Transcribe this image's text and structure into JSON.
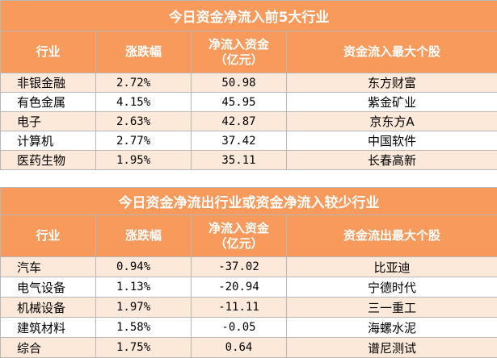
{
  "inflow": {
    "title": "今日资金净流入前5大行业",
    "headers": {
      "industry": "行业",
      "change": "涨跌幅",
      "flow_line1": "净流入资金",
      "flow_line2": "（亿元）",
      "stock": "资金流入最大个股"
    },
    "rows": [
      {
        "industry": "非银金融",
        "change": "2.72%",
        "flow": "50.98",
        "stock": "东方财富"
      },
      {
        "industry": "有色金属",
        "change": "4.15%",
        "flow": "45.95",
        "stock": "紫金矿业"
      },
      {
        "industry": "电子",
        "change": "2.63%",
        "flow": "42.87",
        "stock": "京东方A"
      },
      {
        "industry": "计算机",
        "change": "2.77%",
        "flow": "37.42",
        "stock": "中国软件"
      },
      {
        "industry": "医药生物",
        "change": "1.95%",
        "flow": "35.11",
        "stock": "长春高新"
      }
    ]
  },
  "outflow": {
    "title": "今日资金净流出行业或资金净流入较少行业",
    "headers": {
      "industry": "行业",
      "change": "涨跌幅",
      "flow_line1": "净流入资金",
      "flow_line2": "（亿元）",
      "stock": "资金流出最大个股"
    },
    "rows": [
      {
        "industry": "汽车",
        "change": "0.94%",
        "flow": "-37.02",
        "stock": "比亚迪"
      },
      {
        "industry": "电气设备",
        "change": "1.13%",
        "flow": "-20.94",
        "stock": "宁德时代"
      },
      {
        "industry": "机械设备",
        "change": "1.97%",
        "flow": "-11.11",
        "stock": "三一重工"
      },
      {
        "industry": "建筑材料",
        "change": "1.58%",
        "flow": "-0.05",
        "stock": "海螺水泥"
      },
      {
        "industry": "综合",
        "change": "1.75%",
        "flow": "0.64",
        "stock": "谱尼测试"
      }
    ]
  }
}
